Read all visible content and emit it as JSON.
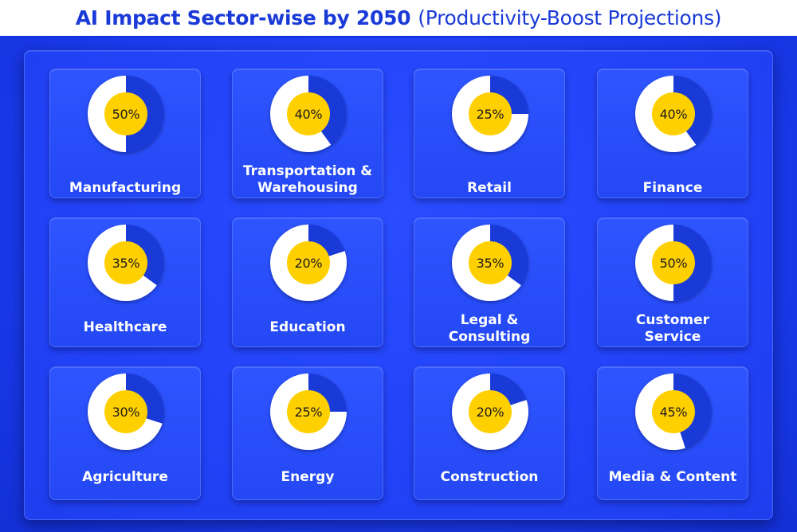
{
  "title": {
    "main": "AI Impact Sector-wise by 2050",
    "sub": "(Productivity-Boost Projections)"
  },
  "colors": {
    "accent": "#1a3ad8",
    "ring_filled": "#1a3ad8",
    "ring_empty": "#ffffff",
    "center": "#ffd000"
  },
  "chart_data": {
    "type": "pie",
    "title": "AI Impact Sector-wise by 2050 (Productivity-Boost Projections)",
    "unit": "%",
    "categories": [
      "Manufacturing",
      "Transportation & Warehousing",
      "Retail",
      "Finance",
      "Healthcare",
      "Education",
      "Legal & Consulting",
      "Customer Service",
      "Agriculture",
      "Energy",
      "Construction",
      "Media & Content"
    ],
    "label_lines": [
      [
        "Manufacturing"
      ],
      [
        "Transportation &",
        "Warehousing"
      ],
      [
        "Retail"
      ],
      [
        "Finance"
      ],
      [
        "Healthcare"
      ],
      [
        "Education"
      ],
      [
        "Legal &",
        "Consulting"
      ],
      [
        "Customer",
        "Service"
      ],
      [
        "Agriculture"
      ],
      [
        "Energy"
      ],
      [
        "Construction"
      ],
      [
        "Media & Content"
      ]
    ],
    "values": [
      50,
      40,
      25,
      40,
      35,
      20,
      35,
      50,
      30,
      25,
      20,
      45
    ],
    "value_labels": [
      "50%",
      "40%",
      "25%",
      "40%",
      "35%",
      "20%",
      "35%",
      "50%",
      "30%",
      "25%",
      "20%",
      "45%"
    ]
  }
}
